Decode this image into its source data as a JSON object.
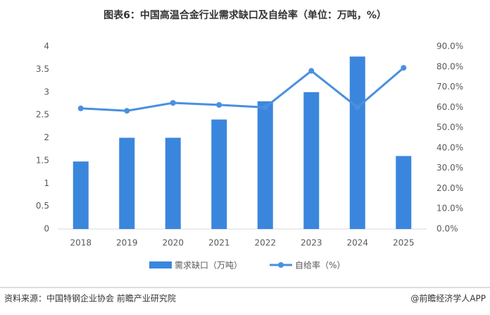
{
  "chart_data": {
    "type": "bar-line",
    "title": "图表6：中国高温合金行业需求缺口及自给率（单位：万吨，%）",
    "categories": [
      "2018",
      "2019",
      "2020",
      "2021",
      "2022",
      "2023",
      "2024",
      "2025"
    ],
    "series": [
      {
        "name": "需求缺口（万吨）",
        "type": "bar",
        "color": "#3b86dd",
        "values": [
          1.48,
          2.0,
          2.0,
          2.4,
          2.8,
          3.0,
          3.78,
          1.6
        ]
      },
      {
        "name": "自给率（%）",
        "type": "line",
        "axis": "y2",
        "color": "#4a8fe0",
        "values": [
          59.5,
          58.3,
          62.2,
          61.2,
          60.0,
          78.0,
          60.0,
          79.5
        ]
      }
    ],
    "ylim": [
      0,
      4
    ],
    "yticks": [
      0,
      0.5,
      1,
      1.5,
      2,
      2.5,
      3,
      3.5,
      4
    ],
    "y2lim": [
      0,
      90
    ],
    "y2ticks": [
      {
        "value": 0,
        "label": "0.0%"
      },
      {
        "value": 10,
        "label": "10.0%"
      },
      {
        "value": 20,
        "label": "20.0%"
      },
      {
        "value": 30,
        "label": "30.0%"
      },
      {
        "value": 40,
        "label": "40.0%"
      },
      {
        "value": 50,
        "label": "50.0%"
      },
      {
        "value": 60,
        "label": "60.0%"
      },
      {
        "value": 70,
        "label": "70.0%"
      },
      {
        "value": 80,
        "label": "80.0%"
      },
      {
        "value": 90,
        "label": "90.0%"
      }
    ],
    "grid": false,
    "legend": "bottom",
    "source": "资料来源：中国特钢企业协会  前瞻产业研究院",
    "credit": "@前瞻经济学人APP"
  }
}
